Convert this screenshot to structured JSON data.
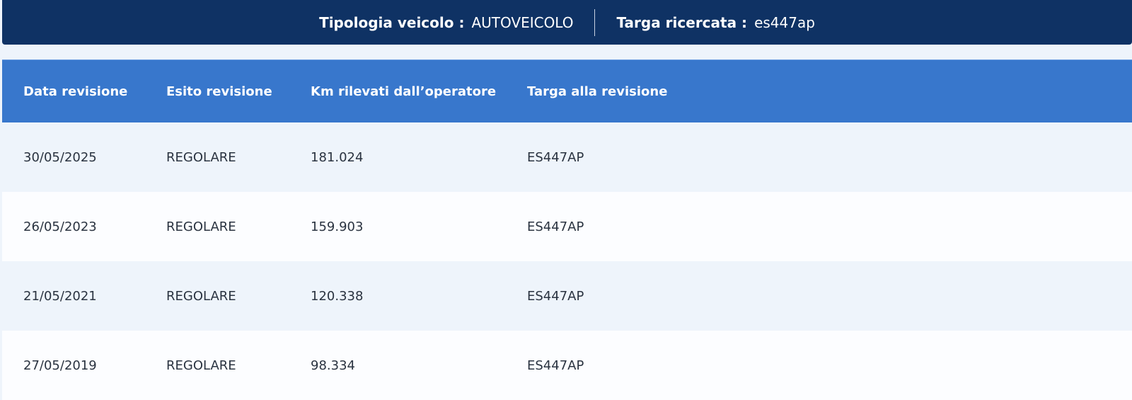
{
  "header": {
    "vehicle_type_label": "Tipologia veicolo :",
    "vehicle_type_value": "AUTOVEICOLO",
    "plate_label": "Targa ricercata :",
    "plate_value": "es447ap"
  },
  "colors": {
    "topbar": "#0f3264",
    "table_header": "#3877cc",
    "row_alt": "#eef4fb"
  },
  "table": {
    "columns": [
      "Data revisione",
      "Esito revisione",
      "Km rilevati dall’operatore",
      "Targa alla revisione"
    ],
    "rows": [
      [
        "30/05/2025",
        "REGOLARE",
        "181.024",
        "ES447AP"
      ],
      [
        "26/05/2023",
        "REGOLARE",
        "159.903",
        "ES447AP"
      ],
      [
        "21/05/2021",
        "REGOLARE",
        "120.338",
        "ES447AP"
      ],
      [
        "27/05/2019",
        "REGOLARE",
        "98.334",
        "ES447AP"
      ]
    ]
  }
}
